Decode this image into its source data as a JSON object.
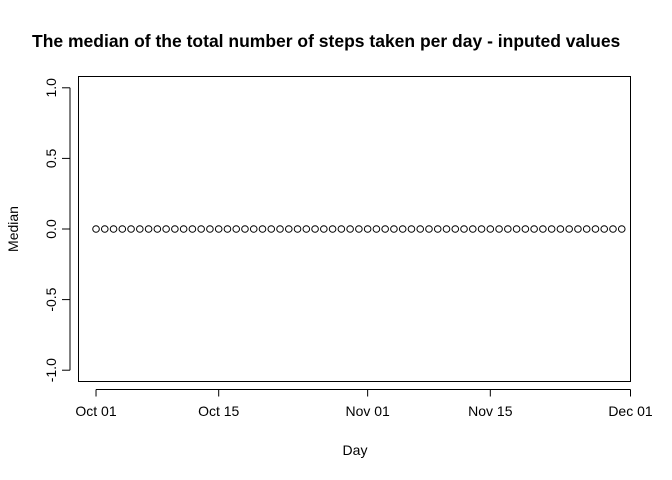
{
  "chart_data": {
    "type": "scatter",
    "title": "The median of the total number of steps taken per day - inputed values",
    "xlabel": "Day",
    "ylabel": "Median",
    "x_start": "2012-10-01",
    "x_end": "2012-11-30",
    "xlim": [
      "2012-09-29",
      "2012-12-01"
    ],
    "ylim": [
      -1.0,
      1.0
    ],
    "x_ticks": [
      {
        "date": "2012-10-01",
        "label": "Oct 01"
      },
      {
        "date": "2012-10-15",
        "label": "Oct 15"
      },
      {
        "date": "2012-11-01",
        "label": "Nov 01"
      },
      {
        "date": "2012-11-15",
        "label": "Nov 15"
      },
      {
        "date": "2012-12-01",
        "label": "Dec 01"
      }
    ],
    "y_ticks": [
      {
        "value": -1.0,
        "label": "-1.0"
      },
      {
        "value": -0.5,
        "label": "-0.5"
      },
      {
        "value": 0.0,
        "label": "0.0"
      },
      {
        "value": 0.5,
        "label": "0.5"
      },
      {
        "value": 1.0,
        "label": "1.0"
      }
    ],
    "series": [
      {
        "y_value": 0,
        "x": [
          "2012-10-01",
          "2012-10-02",
          "2012-10-03",
          "2012-10-04",
          "2012-10-05",
          "2012-10-06",
          "2012-10-07",
          "2012-10-08",
          "2012-10-09",
          "2012-10-10",
          "2012-10-11",
          "2012-10-12",
          "2012-10-13",
          "2012-10-14",
          "2012-10-15",
          "2012-10-16",
          "2012-10-17",
          "2012-10-18",
          "2012-10-19",
          "2012-10-20",
          "2012-10-21",
          "2012-10-22",
          "2012-10-23",
          "2012-10-24",
          "2012-10-25",
          "2012-10-26",
          "2012-10-27",
          "2012-10-28",
          "2012-10-29",
          "2012-10-30",
          "2012-10-31",
          "2012-11-01",
          "2012-11-02",
          "2012-11-03",
          "2012-11-04",
          "2012-11-05",
          "2012-11-06",
          "2012-11-07",
          "2012-11-08",
          "2012-11-09",
          "2012-11-10",
          "2012-11-11",
          "2012-11-12",
          "2012-11-13",
          "2012-11-14",
          "2012-11-15",
          "2012-11-16",
          "2012-11-17",
          "2012-11-18",
          "2012-11-19",
          "2012-11-20",
          "2012-11-21",
          "2012-11-22",
          "2012-11-23",
          "2012-11-24",
          "2012-11-25",
          "2012-11-26",
          "2012-11-27",
          "2012-11-28",
          "2012-11-29",
          "2012-11-30"
        ]
      }
    ],
    "grid": false,
    "marker": "open-circle"
  }
}
